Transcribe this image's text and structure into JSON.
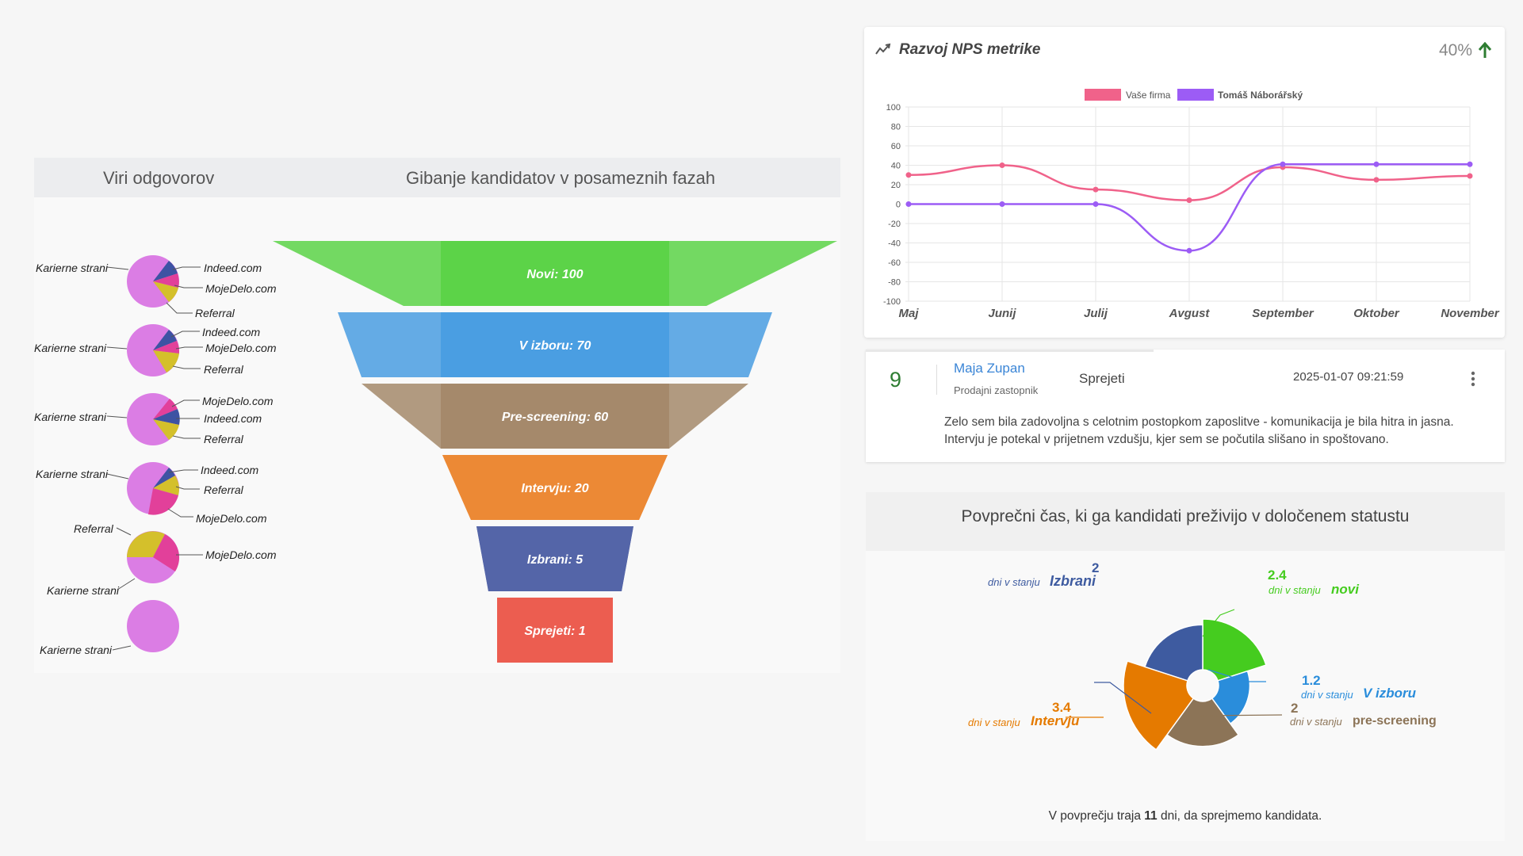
{
  "left": {
    "sources_title": "Viri odgovorov",
    "funnel_title": "Gibanje kandidatov v posameznih fazah"
  },
  "source_pies": [
    {
      "labels": [
        "Karierne strani",
        "Indeed.com",
        "MojeDelo.com",
        "Referral"
      ]
    },
    {
      "labels": [
        "Karierne strani",
        "Indeed.com",
        "MojeDelo.com",
        "Referral"
      ]
    },
    {
      "labels": [
        "Karierne strani",
        "MojeDelo.com",
        "Indeed.com",
        "Referral"
      ]
    },
    {
      "labels": [
        "Karierne strani",
        "Indeed.com",
        "Referral",
        "MojeDelo.com"
      ]
    },
    {
      "labels": [
        "Referral",
        "MojeDelo.com",
        "Karierne strani"
      ]
    },
    {
      "labels": [
        "Karierne strani"
      ]
    }
  ],
  "funnel": [
    {
      "label": "Novi: 100",
      "value": 100,
      "color": "#5cd348"
    },
    {
      "label": "V izboru: 70",
      "value": 70,
      "color": "#4a9ee2"
    },
    {
      "label": "Pre-screening: 60",
      "value": 60,
      "color": "#a5896b"
    },
    {
      "label": "Intervju: 20",
      "value": 20,
      "color": "#ec8935"
    },
    {
      "label": "Izbrani: 5",
      "value": 5,
      "color": "#5465a8"
    },
    {
      "label": "Sprejeti: 1",
      "value": 1,
      "color": "#ec5d50"
    }
  ],
  "nps": {
    "title": "Razvoj NPS metrike",
    "value": "40%",
    "trend_icon": "arrow-up-icon",
    "legend": [
      "Vaše firma",
      "Tomáš Náborářský"
    ]
  },
  "chart_data": {
    "type": "line",
    "x": [
      "Maj",
      "Junij",
      "Julij",
      "Avgust",
      "September",
      "Oktober",
      "November"
    ],
    "series": [
      {
        "name": "Vaše firma",
        "color": "#f0628a",
        "values": [
          30,
          40,
          15,
          4,
          38,
          25,
          29
        ]
      },
      {
        "name": "Tomáš Náborářský",
        "color": "#9c5cf5",
        "values": [
          0,
          0,
          0,
          -48,
          41,
          41,
          41
        ]
      }
    ],
    "ylim": [
      -100,
      100
    ],
    "yticks": [
      100,
      80,
      60,
      40,
      20,
      0,
      -20,
      -40,
      -60,
      -80,
      -100
    ],
    "grid": true,
    "legend_position": "top"
  },
  "review": {
    "score": "9",
    "name": "Maja Zupan",
    "role": "Prodajni zastopnik",
    "status": "Sprejeti",
    "datetime": "2025-01-07 09:21:59",
    "menu_icon": "more-vertical-icon",
    "text_line1": "Zelo sem bila zadovoljna s celotnim postopkom zaposlitve - komunikacija je bila hitra in jasna.",
    "text_line2": "Intervju je potekal v prijetnem vzdušju, kjer sem se počutila slišano in spoštovano."
  },
  "avg_time": {
    "title": "Povprečni čas, ki ga kandidati preživijo v določenem statustu",
    "prefix": "dni v stanju",
    "segments": [
      {
        "name": "novi",
        "value": 2.4,
        "color": "#45cc1f"
      },
      {
        "name": "V izboru",
        "value": 1.2,
        "color": "#2a8ddb"
      },
      {
        "name": "pre-screening",
        "value": 2,
        "color": "#8c7457"
      },
      {
        "name": "Intervju",
        "value": 3.4,
        "color": "#e57a00"
      },
      {
        "name": "Izbrani",
        "value": 2,
        "color": "#3e5ba0"
      }
    ],
    "footer_pre": "V povprečju traja",
    "footer_num": "11",
    "footer_post": "dni, da sprejmemo kandidata."
  },
  "colors": {
    "pie_pink": "#db7de4",
    "pie_navy": "#3d53a3",
    "pie_magenta": "#e2409a",
    "pie_yellow": "#d4c02b",
    "link_blue": "#3a85d6",
    "score_green": "#2e7d32"
  }
}
